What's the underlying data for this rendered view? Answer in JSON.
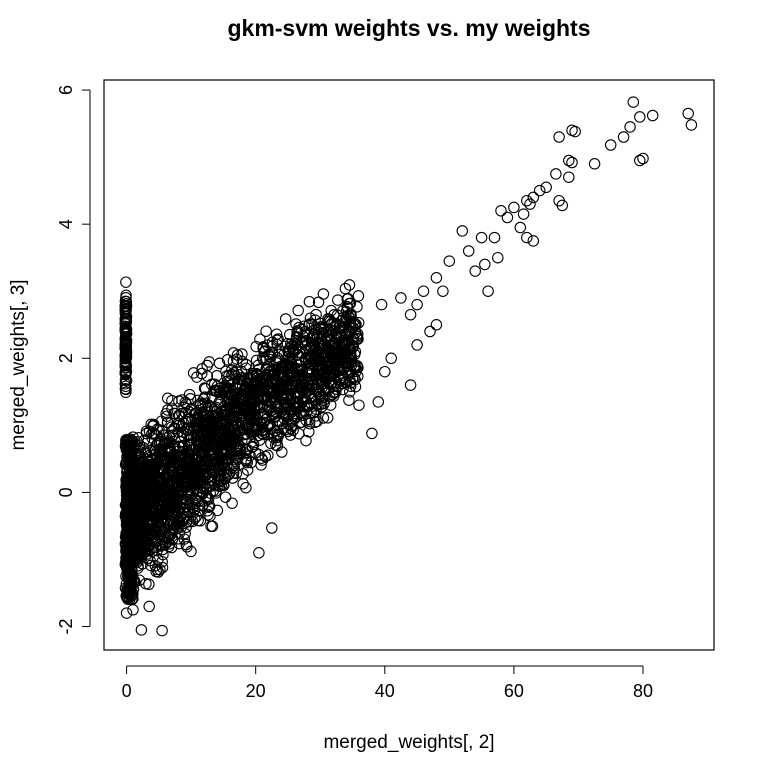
{
  "chart_data": {
    "type": "scatter",
    "title": "gkm-svm weights vs. my weights",
    "xlabel": "merged_weights[, 2]",
    "ylabel": "merged_weights[, 3]",
    "xlim": [
      -3.5,
      91
    ],
    "ylim": [
      -2.35,
      6.15
    ],
    "x_ticks": [
      0,
      20,
      40,
      60,
      80
    ],
    "x_tick_labels": [
      "0",
      "20",
      "40",
      "60",
      "80"
    ],
    "y_ticks": [
      -2,
      0,
      2,
      4,
      6
    ],
    "y_tick_labels": [
      "-2",
      "0",
      "2",
      "4",
      "6"
    ],
    "grid": false,
    "legend": "none",
    "marker": "open-circle",
    "colors": {
      "marker": "#000000",
      "frame": "#000000",
      "background": "#ffffff"
    },
    "point_count_note": "dense cloud of thousands of points; outlying points listed explicitly",
    "outlier_points": [
      [
        78.5,
        5.82
      ],
      [
        79.5,
        5.6
      ],
      [
        81.5,
        5.62
      ],
      [
        87,
        5.65
      ],
      [
        87.5,
        5.48
      ],
      [
        78,
        5.45
      ],
      [
        77,
        5.3
      ],
      [
        75,
        5.18
      ],
      [
        69,
        5.4
      ],
      [
        69.5,
        5.38
      ],
      [
        67,
        5.3
      ],
      [
        68.5,
        4.95
      ],
      [
        69,
        4.92
      ],
      [
        68.5,
        4.7
      ],
      [
        72.5,
        4.9
      ],
      [
        79.5,
        4.95
      ],
      [
        80,
        4.98
      ],
      [
        66.5,
        4.75
      ],
      [
        65,
        4.55
      ],
      [
        64,
        4.5
      ],
      [
        62,
        4.35
      ],
      [
        60,
        4.25
      ],
      [
        61.5,
        4.15
      ],
      [
        62.5,
        4.3
      ],
      [
        63,
        4.4
      ],
      [
        67,
        4.35
      ],
      [
        67.5,
        4.28
      ],
      [
        59,
        4.1
      ],
      [
        58,
        4.2
      ],
      [
        57,
        3.8
      ],
      [
        61,
        3.95
      ],
      [
        62,
        3.8
      ],
      [
        63,
        3.75
      ],
      [
        55,
        3.8
      ],
      [
        55.5,
        3.4
      ],
      [
        56,
        3.0
      ],
      [
        57.5,
        3.5
      ],
      [
        54,
        3.3
      ],
      [
        53,
        3.6
      ],
      [
        52,
        3.9
      ],
      [
        50,
        3.45
      ],
      [
        48,
        3.2
      ],
      [
        49,
        3.0
      ],
      [
        46,
        3.0
      ],
      [
        45,
        2.8
      ],
      [
        48,
        2.5
      ],
      [
        47,
        2.4
      ],
      [
        45,
        2.2
      ],
      [
        41,
        2.0
      ],
      [
        40,
        1.8
      ],
      [
        44,
        1.6
      ],
      [
        38,
        0.88
      ],
      [
        35,
        1.7
      ],
      [
        39,
        1.35
      ],
      [
        36,
        1.3
      ],
      [
        39.5,
        2.8
      ],
      [
        42.5,
        2.9
      ],
      [
        44,
        2.65
      ],
      [
        22.5,
        -0.53
      ],
      [
        20.5,
        -0.9
      ],
      [
        2.3,
        -2.05
      ],
      [
        5.5,
        -2.06
      ],
      [
        0,
        -1.8
      ],
      [
        1,
        -1.75
      ],
      [
        3.5,
        -1.7
      ]
    ],
    "dense_region": {
      "x_range": [
        -0.2,
        36
      ],
      "lower_edge": [
        [
          0,
          -1.7
        ],
        [
          5,
          -1.55
        ],
        [
          10,
          -1.1
        ],
        [
          15,
          -0.4
        ],
        [
          20,
          0.1
        ],
        [
          25,
          0.5
        ],
        [
          30,
          0.8
        ],
        [
          36,
          1.2
        ]
      ],
      "upper_edge": [
        [
          0,
          0.95
        ],
        [
          5,
          1.4
        ],
        [
          10,
          1.9
        ],
        [
          15,
          2.2
        ],
        [
          20,
          2.5
        ],
        [
          25,
          2.85
        ],
        [
          30,
          3.1
        ],
        [
          36,
          3.3
        ]
      ]
    }
  }
}
